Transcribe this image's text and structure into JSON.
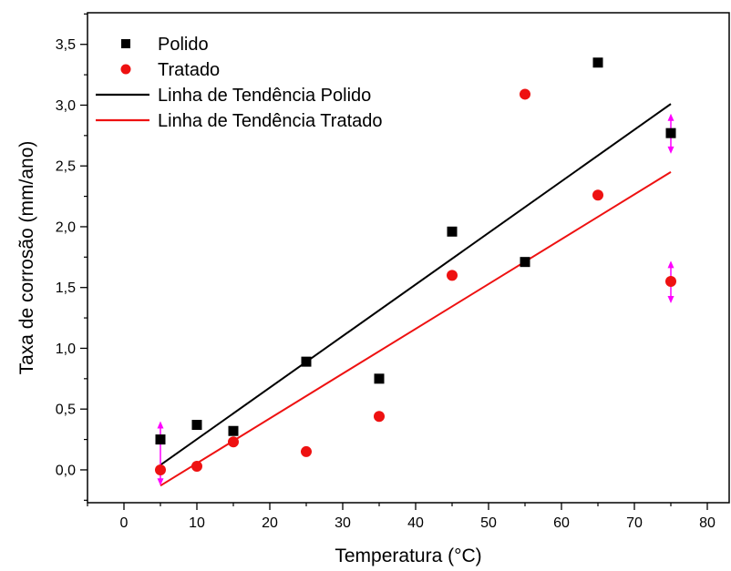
{
  "chart_data": {
    "type": "scatter",
    "title": "",
    "xlabel": "Temperatura (°C)",
    "ylabel": "Taxa de corrosão (mm/ano)",
    "xlim": [
      -5,
      83
    ],
    "ylim": [
      -0.27,
      3.76
    ],
    "xticks": [
      0,
      10,
      20,
      30,
      40,
      50,
      60,
      70,
      80
    ],
    "xtick_labels": [
      "0",
      "10",
      "20",
      "30",
      "40",
      "50",
      "60",
      "70",
      "80"
    ],
    "yticks": [
      0.0,
      0.5,
      1.0,
      1.5,
      2.0,
      2.5,
      3.0,
      3.5
    ],
    "ytick_labels": [
      "0,0",
      "0,5",
      "1,0",
      "1,5",
      "2,0",
      "2,5",
      "3,0",
      "3,5"
    ],
    "grid": false,
    "legend_position": "top-left",
    "series": [
      {
        "name": "Polido",
        "kind": "scatter",
        "marker": "square",
        "color": "#000000",
        "x": [
          5,
          10,
          15,
          25,
          35,
          45,
          55,
          65,
          75
        ],
        "y": [
          0.25,
          0.37,
          0.32,
          0.89,
          0.75,
          1.96,
          1.71,
          3.35,
          2.77
        ]
      },
      {
        "name": "Tratado",
        "kind": "scatter",
        "marker": "circle",
        "color": "#ee1111",
        "x": [
          5,
          10,
          15,
          25,
          35,
          45,
          55,
          65,
          75
        ],
        "y": [
          0.0,
          0.03,
          0.23,
          0.15,
          0.44,
          1.6,
          3.09,
          2.26,
          1.55
        ]
      },
      {
        "name": "Linha de Tendência Polido",
        "kind": "line",
        "color": "#000000",
        "x": [
          5,
          75
        ],
        "y": [
          0.04,
          3.01
        ]
      },
      {
        "name": "Linha de Tendência Tratado",
        "kind": "line",
        "color": "#ee1111",
        "x": [
          5,
          75
        ],
        "y": [
          -0.13,
          2.45
        ]
      }
    ],
    "error_bars": {
      "color": "#ff00ff",
      "items": [
        {
          "x": 5,
          "y": 0.13,
          "low": -0.13,
          "high": 0.4
        },
        {
          "x": 75,
          "y": 2.77,
          "low": 2.6,
          "high": 2.93
        },
        {
          "x": 75,
          "y": 1.55,
          "low": 1.37,
          "high": 1.72
        }
      ]
    }
  }
}
